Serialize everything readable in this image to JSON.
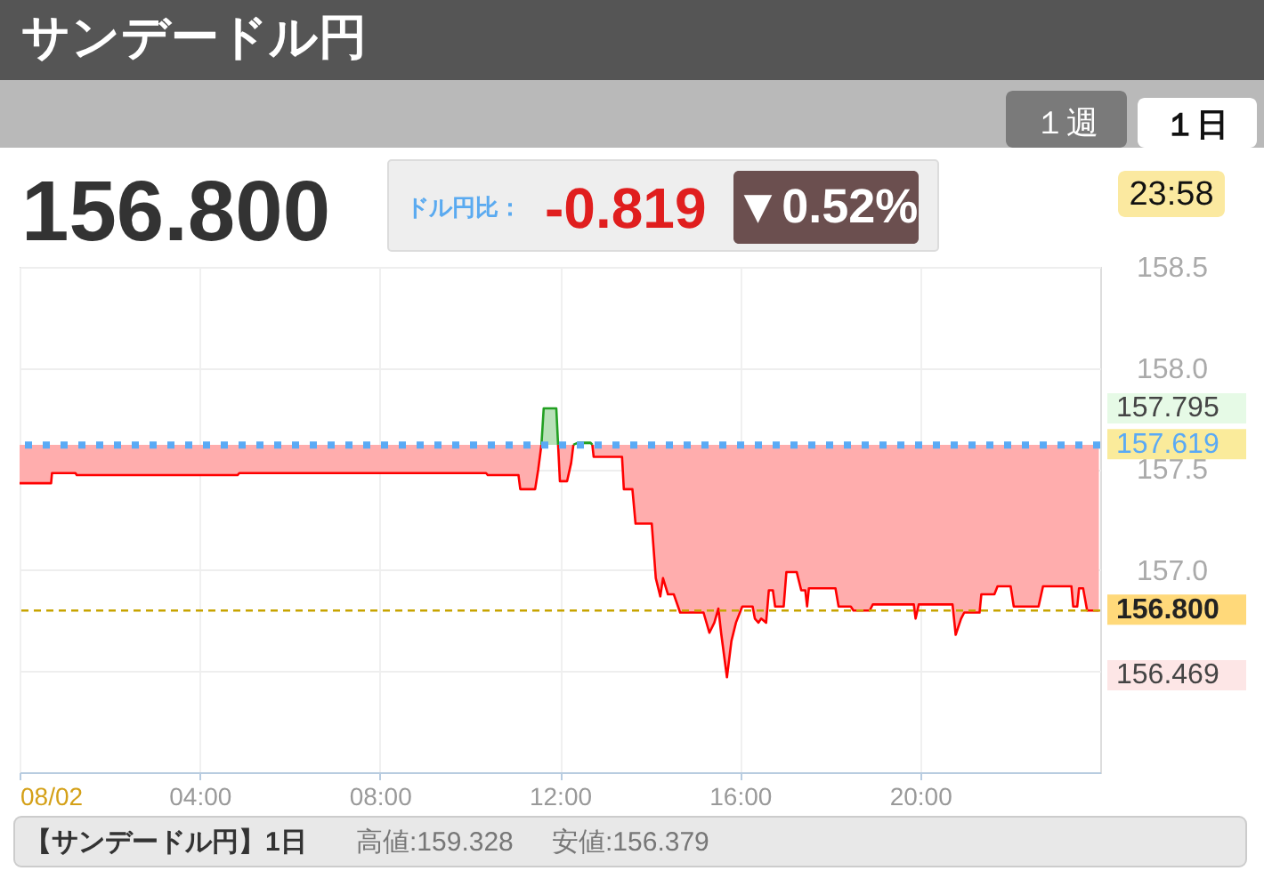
{
  "chart_data": {
    "type": "line",
    "title": "サンデードル円",
    "series": [
      {
        "color": "#ff0000",
        "x": [
          0,
          0.7,
          0.72,
          1.24,
          1.27,
          4.84,
          4.88,
          10.36,
          10.4,
          11.08,
          11.12,
          11.45,
          11.52,
          11.59,
          11.75,
          11.96,
          12.0,
          12.16,
          12.25,
          12.3,
          12.5,
          12.72,
          12.75,
          13.38,
          13.42,
          13.61,
          13.68,
          14.04,
          14.13,
          14.23,
          14.29,
          14.4,
          14.53,
          14.67,
          15.19,
          15.32,
          15.43,
          15.52,
          15.58,
          15.71,
          15.81,
          15.91,
          16.05,
          16.28,
          16.33,
          16.41,
          16.47,
          16.58,
          16.64,
          16.73,
          16.78,
          16.97,
          17.03,
          17.26,
          17.36,
          17.45,
          17.49,
          17.53,
          18.12,
          18.19,
          18.46,
          18.52,
          18.88,
          18.95,
          19.86,
          19.9,
          19.97,
          20.72,
          20.79,
          20.91,
          20.98,
          21.32,
          21.36,
          21.65,
          21.72,
          22.01,
          22.08,
          22.63,
          22.73,
          23.36,
          23.4,
          23.49,
          23.53,
          23.62,
          23.71,
          23.97
        ],
        "values": [
          157.43,
          157.43,
          157.48,
          157.48,
          157.47,
          157.47,
          157.48,
          157.48,
          157.47,
          157.47,
          157.4,
          157.4,
          157.5,
          157.62,
          null,
          157.62,
          157.44,
          157.44,
          157.53,
          157.62,
          null,
          157.62,
          157.56,
          157.56,
          157.4,
          157.4,
          157.23,
          157.23,
          156.96,
          156.87,
          156.96,
          156.88,
          156.88,
          156.79,
          156.79,
          156.69,
          156.74,
          156.81,
          156.69,
          156.47,
          156.65,
          156.74,
          156.82,
          156.82,
          156.76,
          156.74,
          156.76,
          156.74,
          156.9,
          156.9,
          156.82,
          156.82,
          156.99,
          156.99,
          156.9,
          156.9,
          156.82,
          156.91,
          156.91,
          156.82,
          156.82,
          156.8,
          156.8,
          156.83,
          156.83,
          156.76,
          156.83,
          156.83,
          156.68,
          156.76,
          156.79,
          156.79,
          156.88,
          156.88,
          156.92,
          156.92,
          156.82,
          156.82,
          156.92,
          156.92,
          156.82,
          156.82,
          156.91,
          156.91,
          156.8,
          156.8
        ],
        "lower": [
          157.43,
          157.43,
          157.48,
          157.48,
          157.47,
          157.47,
          157.48,
          157.48,
          157.47,
          157.47,
          157.4,
          157.4,
          157.5,
          157.62,
          null,
          157.62,
          157.44,
          157.44,
          157.53,
          157.62,
          null,
          157.62,
          157.56,
          157.56,
          157.4,
          157.4,
          157.23,
          157.23,
          156.96,
          156.87,
          156.96,
          156.88,
          156.88,
          156.79,
          156.79,
          156.69,
          156.74,
          156.81,
          156.69,
          156.47,
          156.65,
          156.74,
          156.82,
          156.82,
          156.76,
          156.74,
          156.76,
          156.74,
          156.9,
          156.9,
          156.82,
          156.82,
          156.99,
          156.99,
          156.9,
          156.9,
          156.82,
          156.91,
          156.91,
          156.82,
          156.82,
          156.8,
          156.8,
          156.83,
          156.83,
          156.76,
          156.83,
          156.83,
          156.68,
          156.76,
          156.79,
          156.79,
          156.88,
          156.88,
          156.92,
          156.92,
          156.82,
          156.82,
          156.92,
          156.92,
          156.82,
          156.82,
          156.91,
          156.91,
          156.8,
          156.8
        ],
        "upper": [
          157.62,
          157.62,
          157.62,
          157.62,
          157.62,
          157.62,
          157.62,
          157.62,
          157.62,
          157.62,
          157.62,
          157.62,
          157.62,
          157.62,
          null,
          157.62,
          157.62,
          157.62,
          157.62,
          157.62,
          null,
          157.62,
          157.62,
          157.62,
          157.62,
          157.62,
          157.62,
          157.62,
          157.62,
          157.62,
          157.62,
          157.62,
          157.62,
          157.62,
          157.62,
          157.62,
          157.62,
          157.62,
          157.62,
          157.62,
          157.62,
          157.62,
          157.62,
          157.62,
          157.62,
          157.62,
          157.62,
          157.62,
          157.62,
          157.62,
          157.62,
          157.62,
          157.62,
          157.62,
          157.62,
          157.62,
          157.62,
          157.62,
          157.62,
          157.62,
          157.62,
          157.62,
          157.62,
          157.62,
          157.62,
          157.62,
          157.62,
          157.62,
          157.62,
          157.62,
          157.62,
          157.62,
          157.62,
          157.62,
          157.62,
          157.62,
          157.62,
          157.62,
          157.62,
          157.62,
          157.62,
          157.62,
          157.62,
          157.62,
          157.62,
          157.62
        ]
      },
      {
        "color": "#22a022",
        "x": [
          11.59,
          11.64,
          11.92,
          11.96,
          12.1,
          12.3,
          12.4,
          12.68,
          12.72
        ],
        "values": [
          157.62,
          157.8,
          157.8,
          157.62,
          null,
          157.62,
          157.63,
          157.63,
          157.62
        ],
        "lower": [
          157.62,
          157.62,
          157.62,
          157.62,
          null,
          157.62,
          157.62,
          157.62,
          157.62
        ],
        "upper": [
          157.62,
          157.8,
          157.8,
          157.62,
          null,
          157.62,
          157.63,
          157.63,
          157.62
        ]
      }
    ],
    "xlim": [
      0,
      24
    ],
    "xticks": [
      {
        "value": 0,
        "label": "08/02"
      },
      {
        "value": 4,
        "label": "04:00"
      },
      {
        "value": 8,
        "label": "08:00"
      },
      {
        "value": 12,
        "label": "12:00"
      },
      {
        "value": 16,
        "label": "16:00"
      },
      {
        "value": 20,
        "label": "20:00"
      }
    ],
    "ylim": [
      156,
      158.5
    ],
    "yticks": [
      {
        "value": 156.5,
        "label": null
      },
      {
        "value": 157,
        "label": "157.0"
      },
      157.5,
      {
        "value": 158,
        "label": "158.0"
      },
      158.5
    ],
    "grid": true,
    "ref_lines": [
      {
        "axis": "y",
        "value": 157.619,
        "label": "157.619",
        "color": "#5aaaf5",
        "line_style": "dotted"
      },
      {
        "axis": "y",
        "value": 156.8,
        "label": "156.800",
        "color": "#c8a400",
        "line_style": "dashed"
      }
    ],
    "annotations": [
      "１週",
      "１日",
      "156.800",
      "ドル円比：",
      "-0.819",
      "▼0.52%",
      "23:58",
      "157.795",
      "156.469",
      "【サンデードル円】1日",
      "高値:159.328",
      "安値:156.379"
    ]
  }
}
